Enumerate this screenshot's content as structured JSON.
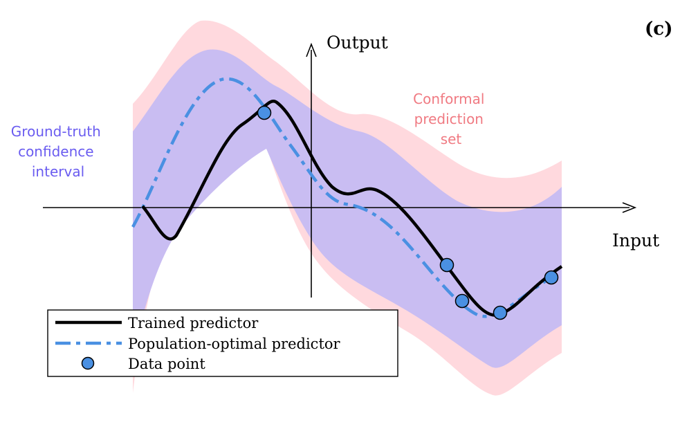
{
  "panel_label": "(c)",
  "axes": {
    "x_label": "Input",
    "y_label": "Output"
  },
  "annotations": {
    "ground_truth": [
      "Ground-truth",
      "confidence",
      "interval"
    ],
    "conformal": [
      "Conformal",
      "prediction",
      "set"
    ]
  },
  "legend": {
    "trained": "Trained predictor",
    "population": "Population-optimal predictor",
    "data_point": "Data point"
  },
  "colors": {
    "conformal_band": "#ffd9de",
    "confidence_band": "#c9bdf2",
    "trained_line": "#000000",
    "population_line": "#4a90e2",
    "data_point_fill": "#4a90e2",
    "ground_truth_text": "#6a5cf0",
    "conformal_text": "#f07a82"
  }
}
